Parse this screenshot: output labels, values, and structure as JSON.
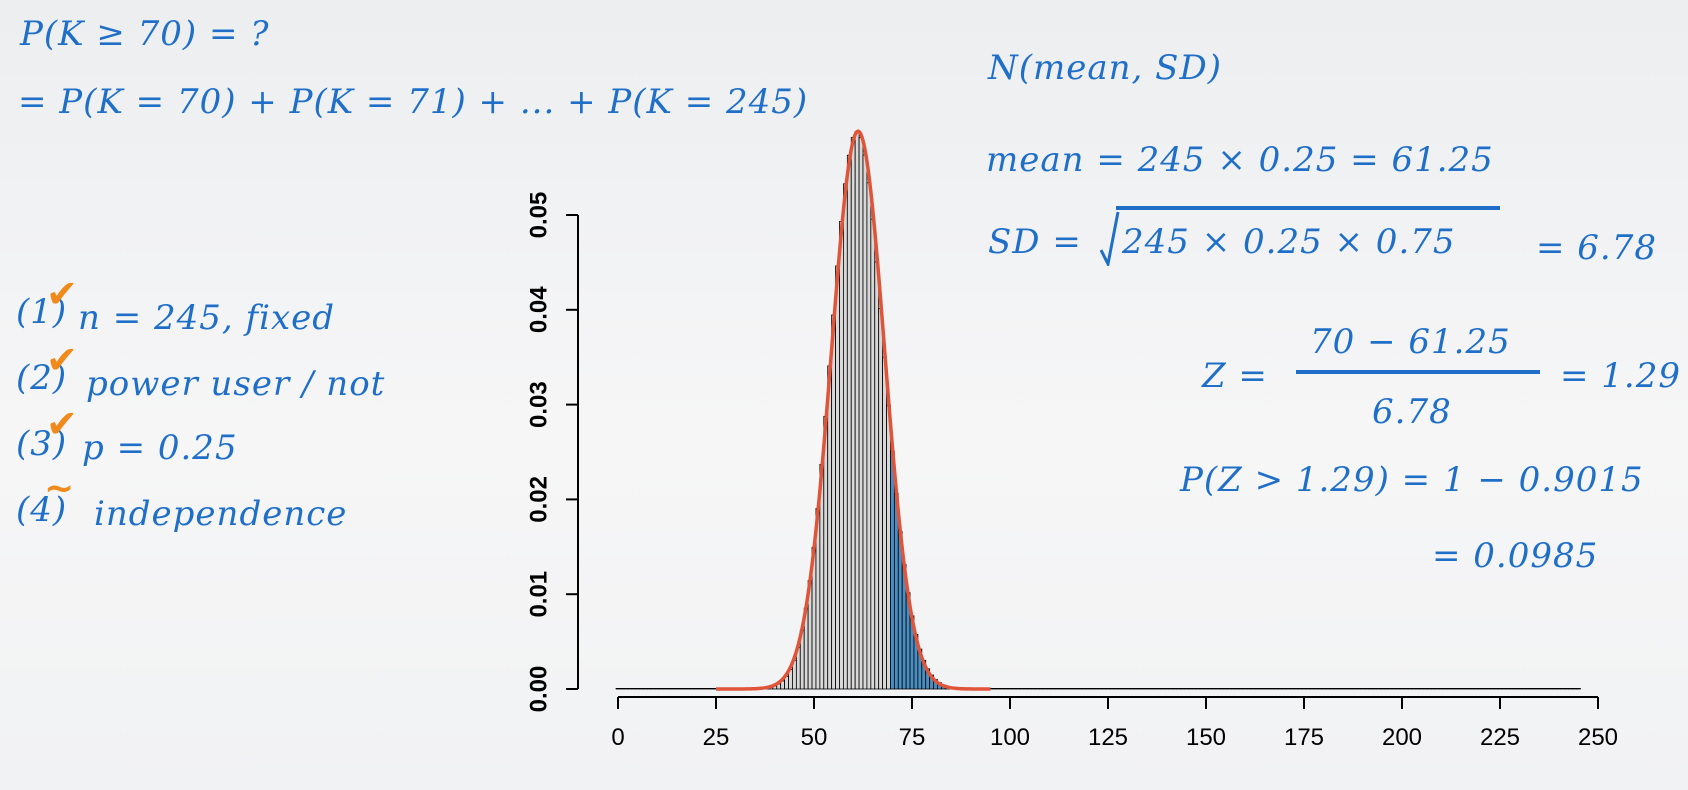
{
  "annotations": {
    "question": "P(K ≥ 70) = ?",
    "sum_expr": "= P(K = 70) + P(K = 71) + ... + P(K = 245)",
    "normal": "N(mean, SD)",
    "mean": "mean = 245 × 0.25 = 61.25",
    "sd_left": "SD =",
    "sd_radicand": "245 × 0.25 × 0.75",
    "sd_result": "= 6.78",
    "z_label": "Z =",
    "z_num": "70 − 61.25",
    "z_den": "6.78",
    "z_result": "= 1.29",
    "pz": "P(Z > 1.29) = 1 − 0.9015",
    "pz_result": "= 0.0985"
  },
  "conditions": [
    {
      "num": "(1)",
      "text": "n = 245, fixed",
      "mark": "✔"
    },
    {
      "num": "(2)",
      "text": "power user / not",
      "mark": "✔"
    },
    {
      "num": "(3)",
      "text": "p = 0.25",
      "mark": "✔"
    },
    {
      "num": "(4)",
      "text": "independence",
      "mark": "~"
    }
  ],
  "colors": {
    "ink": "#1f6fc9",
    "check": "#f08a1a",
    "curve": "#e0553a",
    "bar_fill": "#d8d8d8",
    "bar_highlight": "#4a8fc4",
    "bar_stroke": "#000000"
  },
  "chart_data": {
    "type": "bar",
    "title": "",
    "xlabel": "",
    "ylabel": "",
    "distribution": {
      "name": "binomial",
      "n": 245,
      "p": 0.25
    },
    "normal_overlay": {
      "mean": 61.25,
      "sd": 6.78,
      "range": [
        25,
        95
      ]
    },
    "highlight_from": 70,
    "xlim": [
      0,
      245
    ],
    "ylim": [
      0,
      0.05
    ],
    "x_ticks": [
      0,
      25,
      50,
      75,
      100,
      125,
      150,
      175,
      200,
      225,
      250
    ],
    "x_tick_labels": [
      "0",
      "25",
      "50",
      "75",
      "100",
      "125",
      "150",
      "175",
      "200",
      "225",
      "250"
    ],
    "y_ticks": [
      0,
      0.01,
      0.02,
      0.03,
      0.04,
      0.05
    ],
    "y_tick_labels": [
      "0.00",
      "0.01",
      "0.02",
      "0.03",
      "0.04",
      "0.05"
    ]
  }
}
